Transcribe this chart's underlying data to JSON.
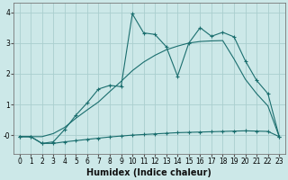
{
  "xlabel": "Humidex (Indice chaleur)",
  "background_color": "#cce8e8",
  "grid_color": "#aacece",
  "line_color": "#1a6e6e",
  "xlim": [
    -0.5,
    23.5
  ],
  "ylim": [
    -0.6,
    4.3
  ],
  "x_ticks": [
    0,
    1,
    2,
    3,
    4,
    5,
    6,
    7,
    8,
    9,
    10,
    11,
    12,
    13,
    14,
    15,
    16,
    17,
    18,
    19,
    20,
    21,
    22,
    23
  ],
  "y_ticks": [
    0,
    1,
    2,
    3,
    4
  ],
  "y_tick_labels": [
    "-0",
    "1",
    "2",
    "3",
    "4"
  ],
  "series1_x": [
    0,
    1,
    2,
    3,
    4,
    5,
    6,
    7,
    8,
    9,
    10,
    11,
    12,
    13,
    14,
    15,
    16,
    17,
    18,
    19,
    20,
    21,
    22,
    23
  ],
  "series1_y": [
    -0.05,
    -0.05,
    -0.27,
    -0.27,
    -0.22,
    -0.18,
    -0.14,
    -0.1,
    -0.06,
    -0.03,
    0.0,
    0.02,
    0.04,
    0.06,
    0.08,
    0.09,
    0.1,
    0.11,
    0.12,
    0.13,
    0.14,
    0.13,
    0.12,
    -0.05
  ],
  "series2_x": [
    0,
    1,
    2,
    3,
    4,
    5,
    6,
    7,
    8,
    9,
    10,
    11,
    12,
    13,
    14,
    15,
    16,
    17,
    18,
    19,
    20,
    21,
    22,
    23
  ],
  "series2_y": [
    -0.05,
    -0.05,
    -0.05,
    0.05,
    0.25,
    0.55,
    0.82,
    1.08,
    1.42,
    1.75,
    2.1,
    2.38,
    2.6,
    2.78,
    2.9,
    3.0,
    3.05,
    3.07,
    3.08,
    2.48,
    1.82,
    1.35,
    0.95,
    -0.05
  ],
  "series3_x": [
    0,
    1,
    2,
    3,
    4,
    5,
    6,
    7,
    8,
    9,
    10,
    11,
    12,
    13,
    14,
    15,
    16,
    17,
    18,
    19,
    20,
    21,
    22,
    23
  ],
  "series3_y": [
    -0.05,
    -0.05,
    -0.27,
    -0.22,
    0.18,
    0.65,
    1.05,
    1.5,
    1.62,
    1.58,
    3.95,
    3.33,
    3.28,
    2.88,
    1.92,
    3.0,
    3.5,
    3.22,
    3.35,
    3.2,
    2.42,
    1.78,
    1.35,
    -0.05
  ]
}
